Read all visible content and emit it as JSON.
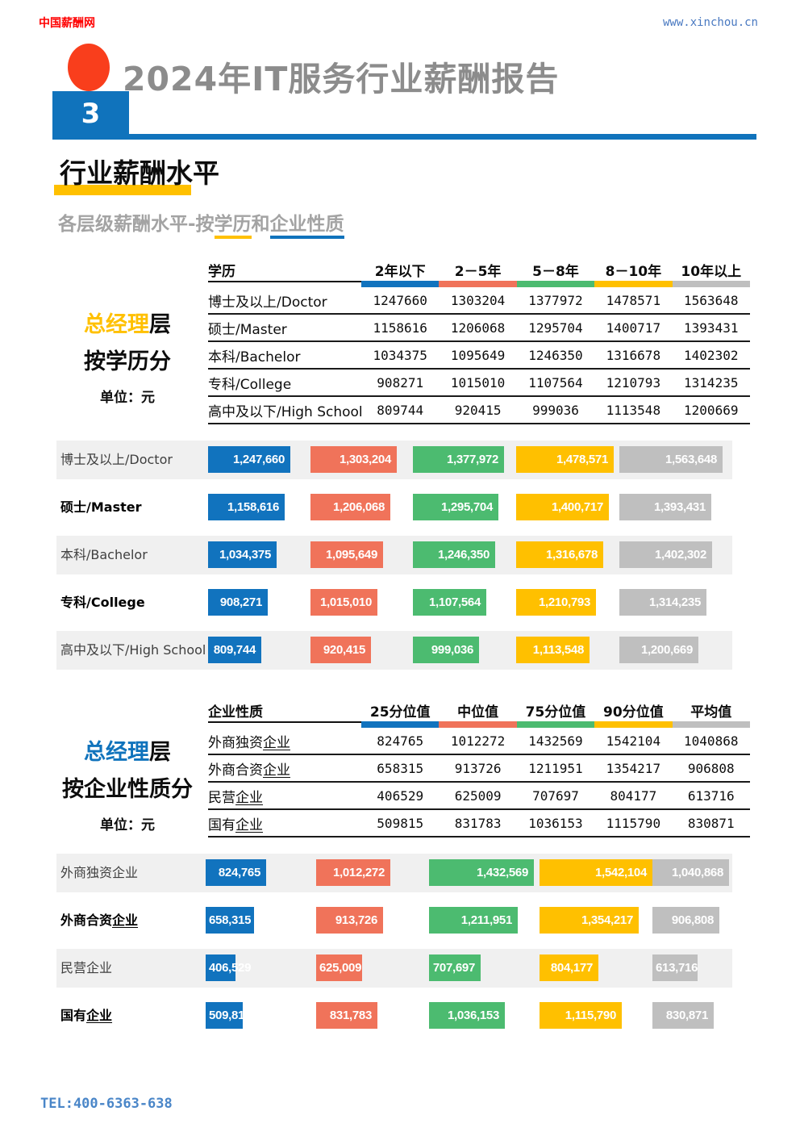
{
  "header": {
    "site_name": "中国薪酬网",
    "site_url": "www.xinchou.cn",
    "report_title": "2024年IT服务行业薪酬报告",
    "page_number": "3"
  },
  "section": {
    "title": "行业薪酬水平",
    "subtitle": {
      "prefix": "各层级薪酬水平-按",
      "edu": "学历",
      "mid": "和",
      "ent": "企业性质"
    }
  },
  "palette": {
    "series_colors": [
      "#1173BE",
      "#F0735A",
      "#4CBB70",
      "#FFC000",
      "#BFBFBF"
    ],
    "accent_blue": "#1073BC",
    "accent_yellow": "#FFC000",
    "logo_red": "#FF0000",
    "circle_red": "#F93E1C",
    "url_blue": "#4979C1",
    "tel_blue": "#4A86C8",
    "row_band_gray": "#F0F0F0"
  },
  "block_education": {
    "side": {
      "title_colored": "总经理",
      "title_rest": "层",
      "subtitle": "按学历分",
      "unit": "单位：元"
    },
    "table": {
      "columns": [
        "学历",
        "2年以下",
        "2－5年",
        "5－8年",
        "8－10年",
        "10年以上"
      ],
      "rows": [
        {
          "label": "博士及以上/Doctor",
          "values": [
            1247660,
            1303204,
            1377972,
            1478571,
            1563648
          ]
        },
        {
          "label": "硕士/Master",
          "values": [
            1158616,
            1206068,
            1295704,
            1400717,
            1393431
          ]
        },
        {
          "label": "本科/Bachelor",
          "values": [
            1034375,
            1095649,
            1246350,
            1316678,
            1402302
          ]
        },
        {
          "label": "专科/College",
          "values": [
            908271,
            1015010,
            1107564,
            1210793,
            1314235
          ]
        },
        {
          "label": "高中及以下/High School",
          "values": [
            809744,
            920415,
            999036,
            1113548,
            1200669
          ]
        }
      ]
    },
    "chart": {
      "type": "bar",
      "rows": [
        {
          "label": "博士及以上/Doctor",
          "u": "",
          "bold": false
        },
        {
          "label": "硕士/Master",
          "u": "",
          "bold": true
        },
        {
          "label": "本科/Bachelor",
          "u": "",
          "bold": false
        },
        {
          "label": "专科/College",
          "u": "",
          "bold": true
        },
        {
          "label": "高中及以下/High School",
          "u": "",
          "bold": false
        }
      ]
    }
  },
  "block_enterprise": {
    "side": {
      "title_colored": "总经理",
      "title_rest": "层",
      "subtitle": "按企业性质分",
      "unit": "单位：元"
    },
    "table": {
      "columns": [
        "企业性质",
        "25分位值",
        "中位值",
        "75分位值",
        "90分位值",
        "平均值"
      ],
      "rows": [
        {
          "label_prefix": "外商独资",
          "label_underlined": "企业",
          "values": [
            824765,
            1012272,
            1432569,
            1542104,
            1040868
          ]
        },
        {
          "label_prefix": "外商合资",
          "label_underlined": "企业",
          "values": [
            658315,
            913726,
            1211951,
            1354217,
            906808
          ]
        },
        {
          "label_prefix": "民营",
          "label_underlined": "企业",
          "values": [
            406529,
            625009,
            707697,
            804177,
            613716
          ]
        },
        {
          "label_prefix": "国有",
          "label_underlined": "企业",
          "values": [
            509815,
            831783,
            1036153,
            1115790,
            830871
          ]
        }
      ]
    },
    "chart": {
      "type": "bar",
      "rows": [
        {
          "label": "外商独资企业",
          "u": "",
          "bold": false
        },
        {
          "label": "外商合资",
          "u": "企业",
          "bold": true
        },
        {
          "label": "民营企业",
          "u": "",
          "bold": false
        },
        {
          "label": "国有",
          "u": "企业",
          "bold": true
        }
      ]
    }
  },
  "footer": {
    "tel": "TEL:400-6363-638"
  }
}
